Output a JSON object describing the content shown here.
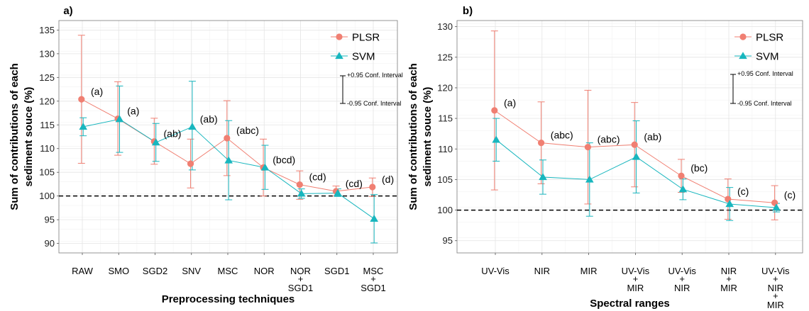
{
  "chart_data": [
    {
      "type": "line",
      "panel_label": "a)",
      "xlabel": "Preprocessing techniques",
      "ylabel_lines": [
        "Sum of contributions of each",
        "sediment souce (%)"
      ],
      "ylim": [
        88,
        137
      ],
      "yticks": [
        90,
        95,
        100,
        105,
        110,
        115,
        120,
        125,
        130,
        135
      ],
      "reference_line": 100,
      "categories": [
        [
          "RAW"
        ],
        [
          "SMO"
        ],
        [
          "SGD2"
        ],
        [
          "SNV"
        ],
        [
          "MSC"
        ],
        [
          "NOR"
        ],
        [
          "NOR",
          "+",
          "SGD1"
        ],
        [
          "SGD1"
        ],
        [
          "MSC",
          "+",
          "SGD1"
        ]
      ],
      "series": [
        {
          "name": "PLSR",
          "color": "#F07F72",
          "marker": "circle",
          "values": [
            120.4,
            116.3,
            111.5,
            106.8,
            112.2,
            106.0,
            102.4,
            101.0,
            101.9
          ],
          "ci_upper": [
            133.9,
            124.1,
            116.4,
            112.0,
            120.1,
            112.0,
            105.3,
            102.1,
            103.8
          ],
          "ci_lower": [
            106.9,
            108.6,
            106.7,
            101.7,
            104.3,
            100.0,
            99.3,
            100.0,
            99.9
          ]
        },
        {
          "name": "SVM",
          "color": "#18B6BE",
          "marker": "triangle",
          "values": [
            114.6,
            116.2,
            111.3,
            114.6,
            107.5,
            106.0,
            100.5,
            100.6,
            95.2
          ],
          "ci_upper": [
            116.5,
            123.2,
            115.3,
            124.2,
            115.9,
            110.7,
            101.5,
            101.5,
            100.3
          ],
          "ci_lower": [
            112.7,
            109.2,
            107.3,
            105.5,
            99.2,
            101.4,
            99.5,
            99.9,
            90.1
          ]
        }
      ],
      "group_letters": [
        "(a)",
        "(a)",
        "(ab)",
        "(ab)",
        "(abc)",
        "(bcd)",
        "(cd)",
        "(cd)",
        "(d)"
      ],
      "legend": {
        "position": "top-right",
        "ci_upper_text": "+0.95 Conf. Interval",
        "ci_lower_text": "-0.95 Conf. Interval"
      },
      "grid": true
    },
    {
      "type": "line",
      "panel_label": "b)",
      "xlabel": "Spectral ranges",
      "ylabel_lines": [
        "Sum of contributions of each",
        "sediment souce (%)"
      ],
      "ylim": [
        93,
        131
      ],
      "yticks": [
        95,
        100,
        105,
        110,
        115,
        120,
        125,
        130
      ],
      "reference_line": 100,
      "categories": [
        [
          "UV-Vis"
        ],
        [
          "NIR"
        ],
        [
          "MIR"
        ],
        [
          "UV-Vis",
          "+",
          "MIR"
        ],
        [
          "UV-Vis",
          "+",
          "NIR"
        ],
        [
          "NIR",
          "+",
          "MIR"
        ],
        [
          "UV-Vis",
          "+",
          "NIR",
          "+",
          "MIR"
        ]
      ],
      "series": [
        {
          "name": "PLSR",
          "color": "#F07F72",
          "marker": "circle",
          "values": [
            116.3,
            111.0,
            110.3,
            110.7,
            105.6,
            101.8,
            101.2
          ],
          "ci_upper": [
            129.3,
            117.7,
            119.6,
            117.6,
            108.3,
            105.1,
            104.0
          ],
          "ci_lower": [
            103.3,
            104.3,
            101.0,
            103.8,
            102.9,
            98.5,
            98.4
          ]
        },
        {
          "name": "SVM",
          "color": "#18B6BE",
          "marker": "triangle",
          "values": [
            111.5,
            105.4,
            105.0,
            108.7,
            103.4,
            101.0,
            100.4
          ],
          "ci_upper": [
            115.0,
            108.2,
            111.0,
            114.6,
            105.1,
            103.7,
            101.1
          ],
          "ci_lower": [
            108.0,
            102.6,
            99.0,
            102.8,
            101.7,
            98.3,
            99.7
          ]
        }
      ],
      "group_letters": [
        "(a)",
        "(abc)",
        "(abc)",
        "(ab)",
        "(bc)",
        "(c)",
        "(c)"
      ],
      "legend": {
        "position": "top-right",
        "ci_upper_text": "+0.95 Conf. Interval",
        "ci_lower_text": "-0.95 Conf. Interval"
      },
      "grid": true
    }
  ]
}
